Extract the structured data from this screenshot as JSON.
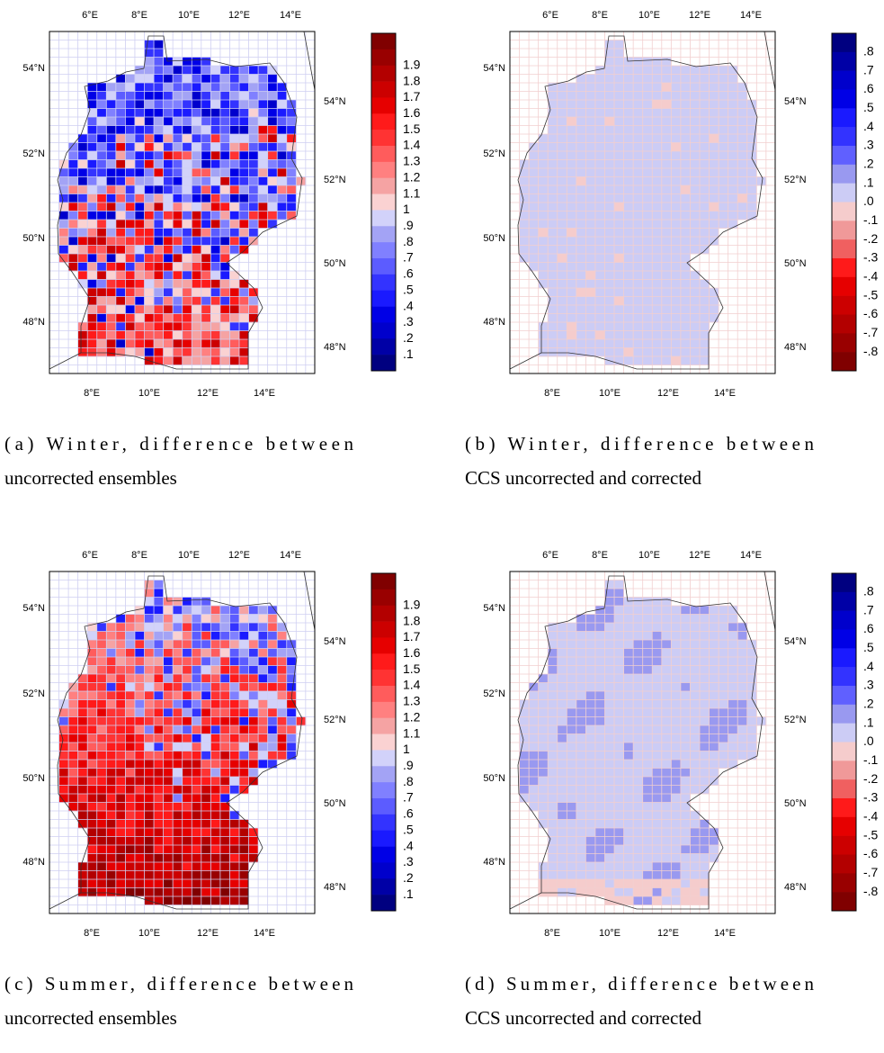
{
  "panels": [
    {
      "caption": [
        "(a) Winter, difference between",
        "uncorrected ensembles"
      ],
      "lon_top": [
        "6°E",
        "8°E",
        "10°E",
        "12°E",
        "14°E"
      ],
      "lon_bottom": [
        "8°E",
        "10°E",
        "12°E",
        "14°E"
      ],
      "lat_left": [
        "54°N",
        "52°N",
        "50°N",
        "48°N"
      ],
      "lat_right": [
        "54°N",
        "52°N",
        "50°N",
        "48°N"
      ],
      "colorbar": {
        "labels": [
          "1.9",
          "1.8",
          "1.7",
          "1.6",
          "1.5",
          "1.4",
          "1.3",
          "1.2",
          "1.1",
          "1",
          ".9",
          ".8",
          ".7",
          ".6",
          ".5",
          ".4",
          ".3",
          ".2",
          ".1"
        ],
        "colors": [
          "#800000",
          "#990000",
          "#b30000",
          "#cc0000",
          "#e60000",
          "#ff1a1a",
          "#ff3333",
          "#ff5c5c",
          "#ff8080",
          "#f5a3a3",
          "#fad2d2",
          "#d2d2fa",
          "#a3a3f5",
          "#8080ff",
          "#5c5cff",
          "#3333ff",
          "#1a1aff",
          "#0000e6",
          "#0000cc",
          "#0000a6",
          "#000080"
        ]
      },
      "grid_color": "#cfcff2"
    },
    {
      "caption": [
        "(b) Winter, difference between",
        "CCS uncorrected and corrected"
      ],
      "lon_top": [
        "6°E",
        "8°E",
        "10°E",
        "12°E",
        "14°E"
      ],
      "lon_bottom": [
        "8°E",
        "10°E",
        "12°E",
        "14°E"
      ],
      "lat_left": [
        "54°N",
        "52°N",
        "50°N",
        "48°N"
      ],
      "lat_right": [
        "54°N",
        "52°N",
        "50°N",
        "48°N"
      ],
      "colorbar": {
        "labels": [
          ".8",
          ".7",
          ".6",
          ".5",
          ".4",
          ".3",
          ".2",
          ".1",
          ".0",
          "-.1",
          "-.2",
          "-.3",
          "-.4",
          "-.5",
          "-.6",
          "-.7",
          "-.8"
        ],
        "colors": [
          "#000080",
          "#0000a6",
          "#0000cc",
          "#0000e6",
          "#1a1aff",
          "#3333ff",
          "#6060ff",
          "#9999f0",
          "#ccccf5",
          "#f5cccc",
          "#f09999",
          "#f06060",
          "#ff1a1a",
          "#e60000",
          "#cc0000",
          "#b30000",
          "#990000",
          "#800000"
        ]
      },
      "grid_color": "#f2cfcf"
    },
    {
      "caption": [
        "(c) Summer, difference between",
        "uncorrected ensembles"
      ],
      "lon_top": [
        "6°E",
        "8°E",
        "10°E",
        "12°E",
        "14°E"
      ],
      "lon_bottom": [
        "8°E",
        "10°E",
        "12°E",
        "14°E"
      ],
      "lat_left": [
        "54°N",
        "52°N",
        "50°N",
        "48°N"
      ],
      "lat_right": [
        "54°N",
        "52°N",
        "50°N",
        "48°N"
      ],
      "colorbar": {
        "labels": [
          "1.9",
          "1.8",
          "1.7",
          "1.6",
          "1.5",
          "1.4",
          "1.3",
          "1.2",
          "1.1",
          "1",
          ".9",
          ".8",
          ".7",
          ".6",
          ".5",
          ".4",
          ".3",
          ".2",
          ".1"
        ],
        "colors": [
          "#800000",
          "#990000",
          "#b30000",
          "#cc0000",
          "#e60000",
          "#ff1a1a",
          "#ff3333",
          "#ff5c5c",
          "#ff8080",
          "#f5a3a3",
          "#fad2d2",
          "#d2d2fa",
          "#a3a3f5",
          "#8080ff",
          "#5c5cff",
          "#3333ff",
          "#1a1aff",
          "#0000e6",
          "#0000cc",
          "#0000a6",
          "#000080"
        ]
      },
      "grid_color": "#cfcff2"
    },
    {
      "caption": [
        "(d) Summer, difference between",
        "CCS uncorrected and corrected"
      ],
      "lon_top": [
        "6°E",
        "8°E",
        "10°E",
        "12°E",
        "14°E"
      ],
      "lon_bottom": [
        "8°E",
        "10°E",
        "12°E",
        "14°E"
      ],
      "lat_left": [
        "54°N",
        "52°N",
        "50°N",
        "48°N"
      ],
      "lat_right": [
        "54°N",
        "52°N",
        "50°N",
        "48°N"
      ],
      "colorbar": {
        "labels": [
          ".8",
          ".7",
          ".6",
          ".5",
          ".4",
          ".3",
          ".2",
          ".1",
          ".0",
          "-.1",
          "-.2",
          "-.3",
          "-.4",
          "-.5",
          "-.6",
          "-.7",
          "-.8"
        ],
        "colors": [
          "#000080",
          "#0000a6",
          "#0000cc",
          "#0000e6",
          "#1a1aff",
          "#3333ff",
          "#6060ff",
          "#9999f0",
          "#ccccf5",
          "#f5cccc",
          "#f09999",
          "#f06060",
          "#ff1a1a",
          "#e60000",
          "#cc0000",
          "#b30000",
          "#990000",
          "#800000"
        ]
      },
      "grid_color": "#f2cfcf"
    }
  ]
}
